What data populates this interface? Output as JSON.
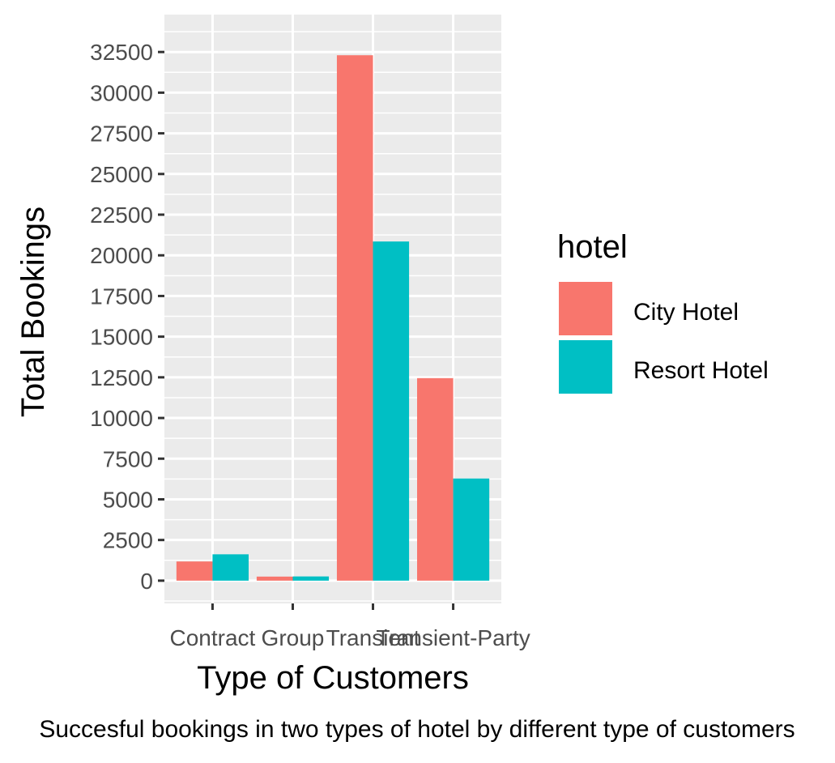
{
  "chart_data": {
    "type": "bar",
    "categories": [
      "Contract",
      "Group",
      "Transient",
      "Transient-Party"
    ],
    "series": [
      {
        "name": "City Hotel",
        "values": [
          1180,
          250,
          32300,
          12450
        ],
        "color": "#F8766D"
      },
      {
        "name": "Resort Hotel",
        "values": [
          1620,
          260,
          20850,
          6280
        ],
        "color": "#00BFC4"
      }
    ],
    "xlabel": "Type of Customers",
    "ylabel": "Total Bookings",
    "ylim": [
      -1400,
      34800
    ],
    "y_ticks": [
      0,
      2500,
      5000,
      7500,
      10000,
      12500,
      15000,
      17500,
      20000,
      22500,
      25000,
      27500,
      30000,
      32500
    ],
    "legend_title": "hotel",
    "legend_position": "right",
    "grid": true,
    "caption": "Succesful bookings in two types of hotel by different type of customers"
  },
  "colors": {
    "panel_background": "#EBEBEB",
    "grid_line": "#FFFFFF"
  }
}
